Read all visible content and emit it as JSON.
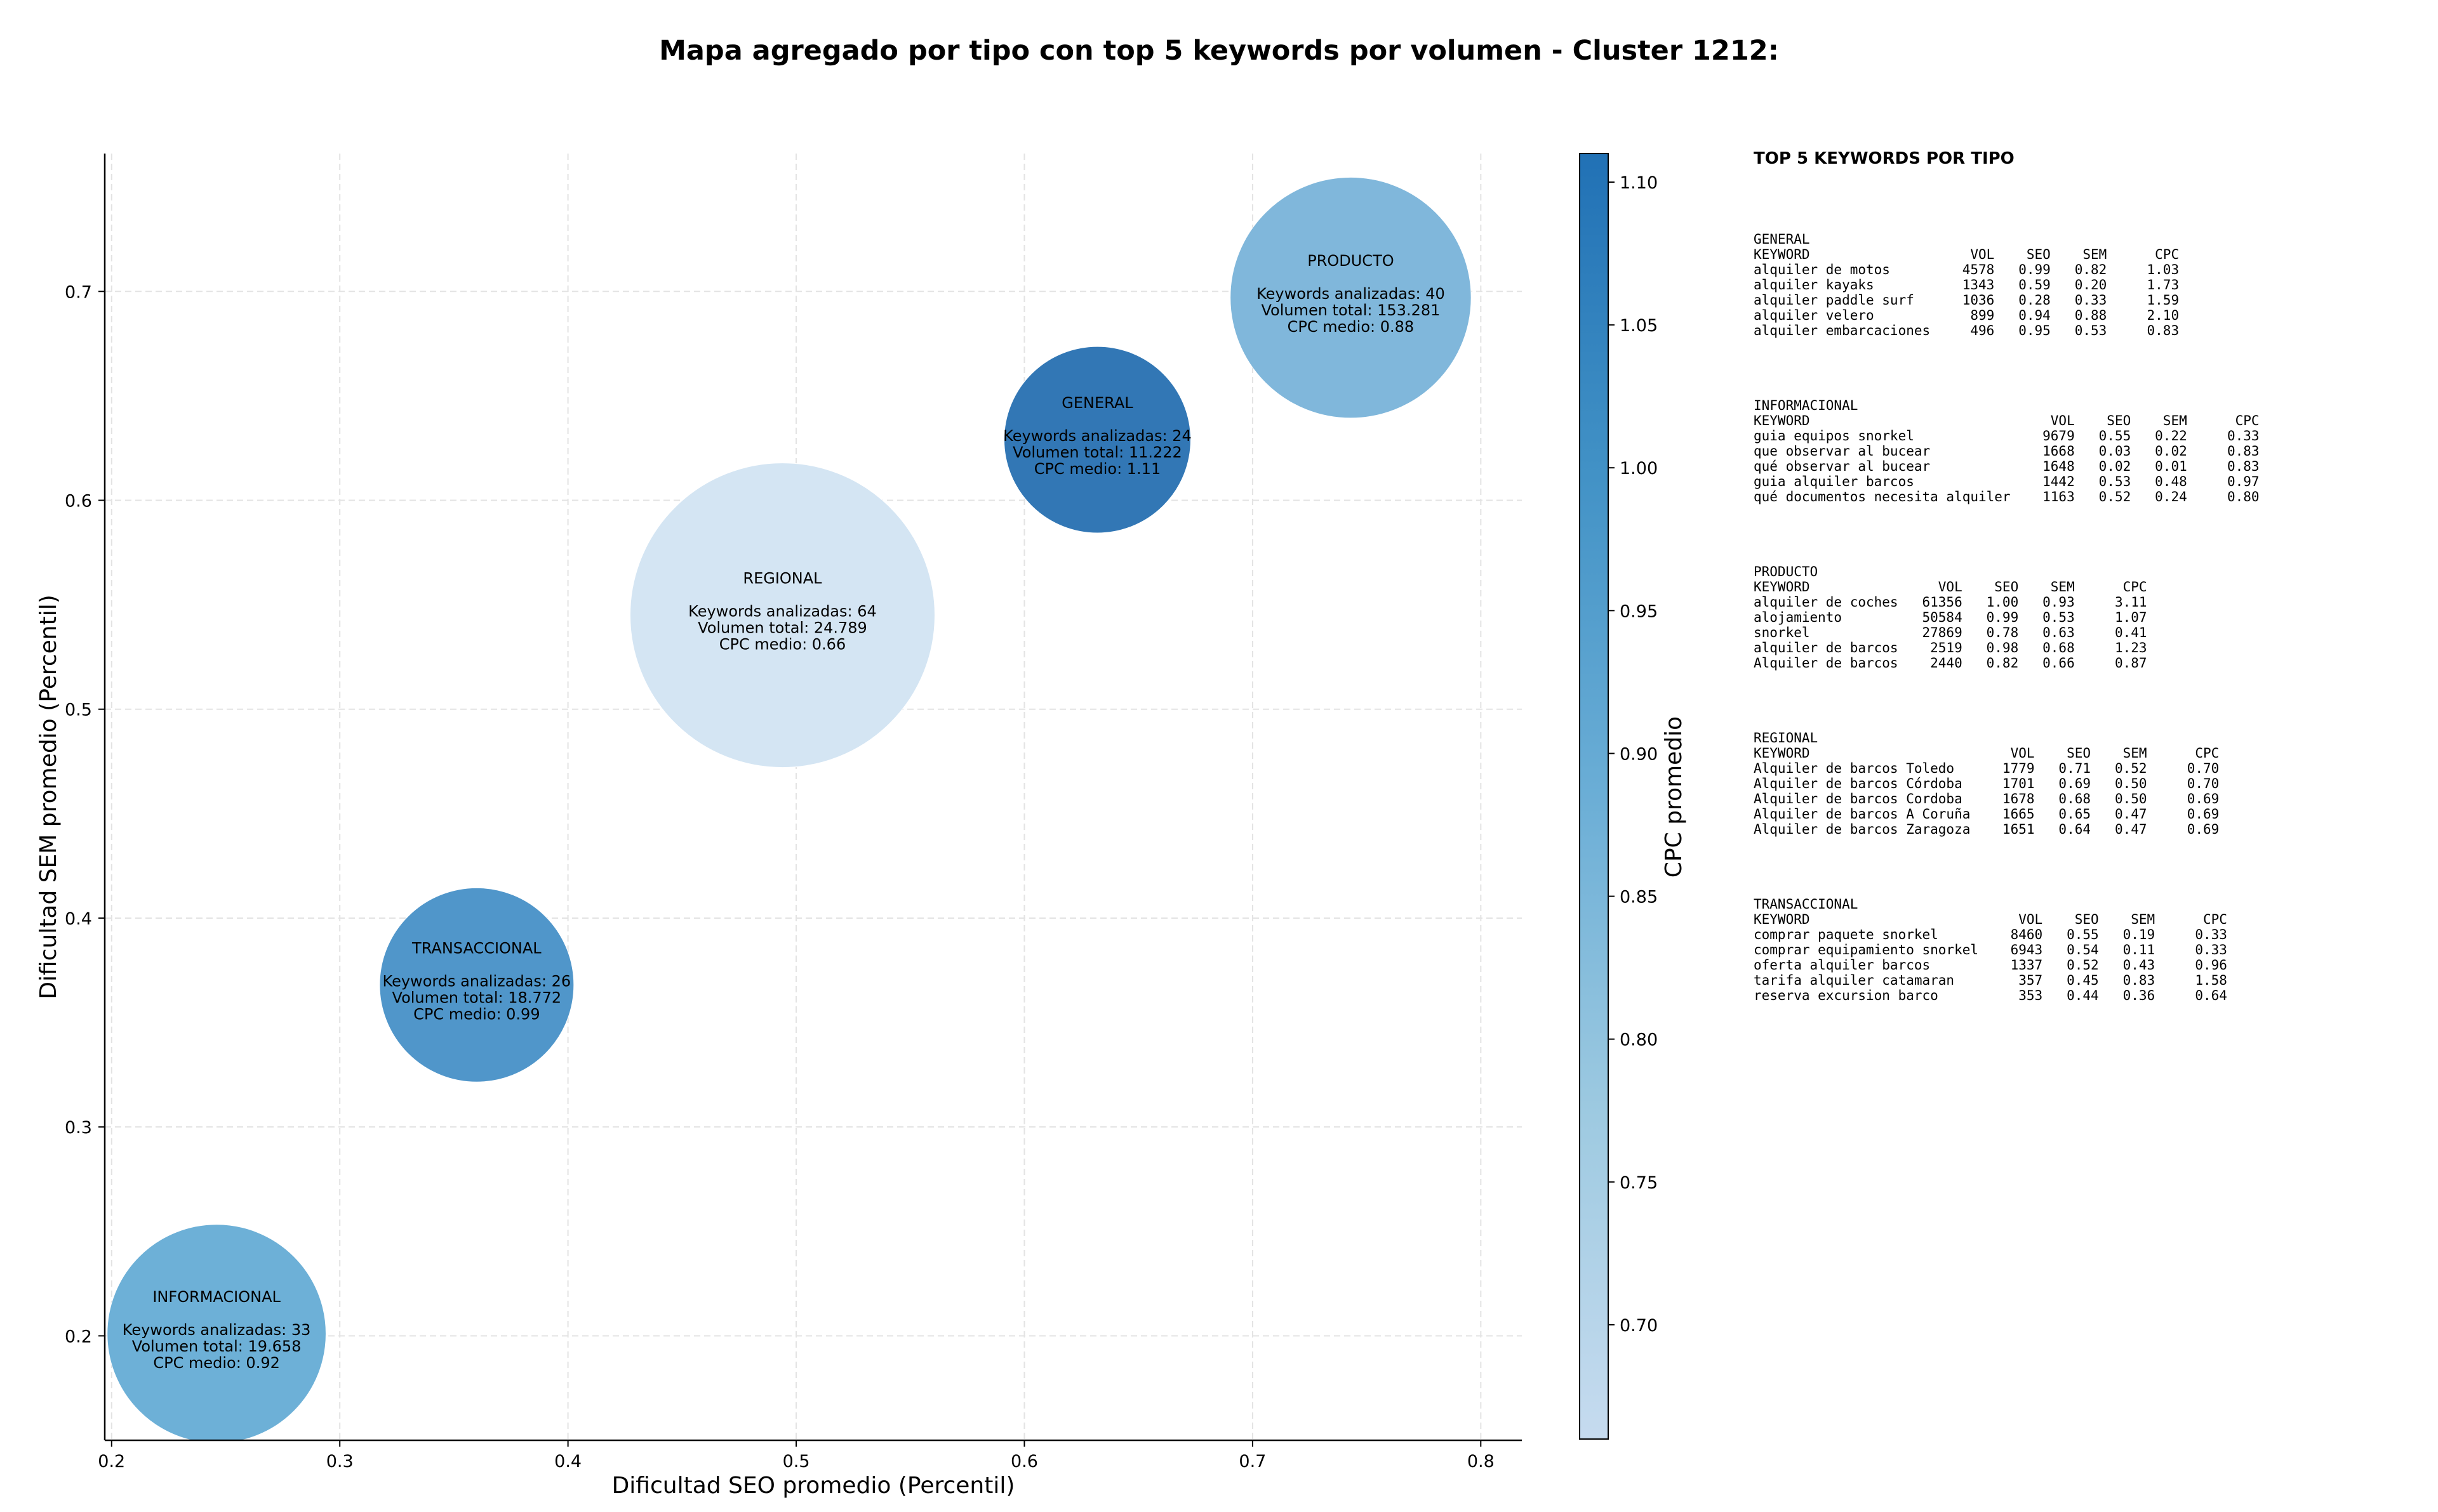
{
  "title": "Mapa agregado por tipo con top 5 keywords por volumen - Cluster 1212:",
  "chart_data": {
    "type": "scatter",
    "title": "Mapa agregado por tipo con top 5 keywords por volumen - Cluster 1212:",
    "xlabel": "Dificultad SEO promedio (Percentil)",
    "ylabel": "Dificultad SEM promedio (Percentil)",
    "xlim": [
      0.197,
      0.818
    ],
    "ylim": [
      0.15,
      0.766
    ],
    "xticks": [
      "0.2",
      "0.3",
      "0.4",
      "0.5",
      "0.6",
      "0.7",
      "0.8"
    ],
    "yticks": [
      "0.2",
      "0.3",
      "0.4",
      "0.5",
      "0.6",
      "0.7"
    ],
    "grid": true,
    "colorbar": {
      "label": "CPC promedio",
      "range": [
        0.66,
        1.11
      ],
      "ticks": [
        "0.70",
        "0.75",
        "0.80",
        "0.85",
        "0.90",
        "0.95",
        "1.00",
        "1.05",
        "1.10"
      ],
      "colormap": "Blues",
      "color_stops": [
        "#c6dbef",
        "#9ecae1",
        "#6baed6",
        "#4292c6",
        "#2171b5"
      ]
    },
    "points": [
      {
        "name": "INFORMACIONAL",
        "x": 0.246,
        "y": 0.201,
        "keywords": 33,
        "volume": 19658,
        "cpc": 0.92,
        "line_kw": "Keywords analizadas: 33",
        "line_vol": "Volumen total: 19.658",
        "line_cpc": "CPC medio: 0.92",
        "color": "#6aaed6"
      },
      {
        "name": "TRANSACCIONAL",
        "x": 0.36,
        "y": 0.368,
        "keywords": 26,
        "volume": 18772,
        "cpc": 0.99,
        "line_kw": "Keywords analizadas: 26",
        "line_vol": "Volumen total: 18.772",
        "line_cpc": "CPC medio: 0.99",
        "color": "#4d94c9"
      },
      {
        "name": "REGIONAL",
        "x": 0.494,
        "y": 0.545,
        "keywords": 64,
        "volume": 24789,
        "cpc": 0.66,
        "line_kw": "Keywords analizadas: 64",
        "line_vol": "Volumen total: 24.789",
        "line_cpc": "CPC medio: 0.66",
        "color": "#d3e4f3"
      },
      {
        "name": "GENERAL",
        "x": 0.632,
        "y": 0.629,
        "keywords": 24,
        "volume": 11222,
        "cpc": 1.11,
        "line_kw": "Keywords analizadas: 24",
        "line_vol": "Volumen total: 11.222",
        "line_cpc": "CPC medio: 1.11",
        "color": "#2e74b4"
      },
      {
        "name": "PRODUCTO",
        "x": 0.743,
        "y": 0.697,
        "keywords": 40,
        "volume": 153281,
        "cpc": 0.88,
        "line_kw": "Keywords analizadas: 40",
        "line_vol": "Volumen total: 153.281",
        "line_cpc": "CPC medio: 0.88",
        "color": "#7db6da"
      }
    ]
  },
  "keywords_panel": {
    "title": "TOP 5 KEYWORDS POR TIPO",
    "groups": [
      {
        "name": "GENERAL",
        "text": "GENERAL\nKEYWORD                    VOL    SEO    SEM      CPC\nalquiler de motos         4578   0.99   0.82     1.03\nalquiler kayaks           1343   0.59   0.20     1.73\nalquiler paddle surf      1036   0.28   0.33     1.59\nalquiler velero            899   0.94   0.88     2.10\nalquiler embarcaciones     496   0.95   0.53     0.83"
      },
      {
        "name": "INFORMACIONAL",
        "text": "INFORMACIONAL\nKEYWORD                              VOL    SEO    SEM      CPC\nguia equipos snorkel                9679   0.55   0.22     0.33\nque observar al bucear              1668   0.03   0.02     0.83\nqué observar al bucear              1648   0.02   0.01     0.83\nguia alquiler barcos                1442   0.53   0.48     0.97\nqué documentos necesita alquiler    1163   0.52   0.24     0.80"
      },
      {
        "name": "PRODUCTO",
        "text": "PRODUCTO\nKEYWORD                VOL    SEO    SEM      CPC\nalquiler de coches   61356   1.00   0.93     3.11\nalojamiento          50584   0.99   0.53     1.07\nsnorkel              27869   0.78   0.63     0.41\nalquiler de barcos    2519   0.98   0.68     1.23\nAlquiler de barcos    2440   0.82   0.66     0.87"
      },
      {
        "name": "REGIONAL",
        "text": "REGIONAL\nKEYWORD                         VOL    SEO    SEM      CPC\nAlquiler de barcos Toledo      1779   0.71   0.52     0.70\nAlquiler de barcos Córdoba     1701   0.69   0.50     0.70\nAlquiler de barcos Cordoba     1678   0.68   0.50     0.69\nAlquiler de barcos A Coruña    1665   0.65   0.47     0.69\nAlquiler de barcos Zaragoza    1651   0.64   0.47     0.69"
      },
      {
        "name": "TRANSACCIONAL",
        "text": "TRANSACCIONAL\nKEYWORD                          VOL    SEO    SEM      CPC\ncomprar paquete snorkel         8460   0.55   0.19     0.33\ncomprar equipamiento snorkel    6943   0.54   0.11     0.33\noferta alquiler barcos          1337   0.52   0.43     0.96\ntarifa alquiler catamaran        357   0.45   0.83     1.58\nreserva excursion barco          353   0.44   0.36     0.64"
      }
    ]
  }
}
